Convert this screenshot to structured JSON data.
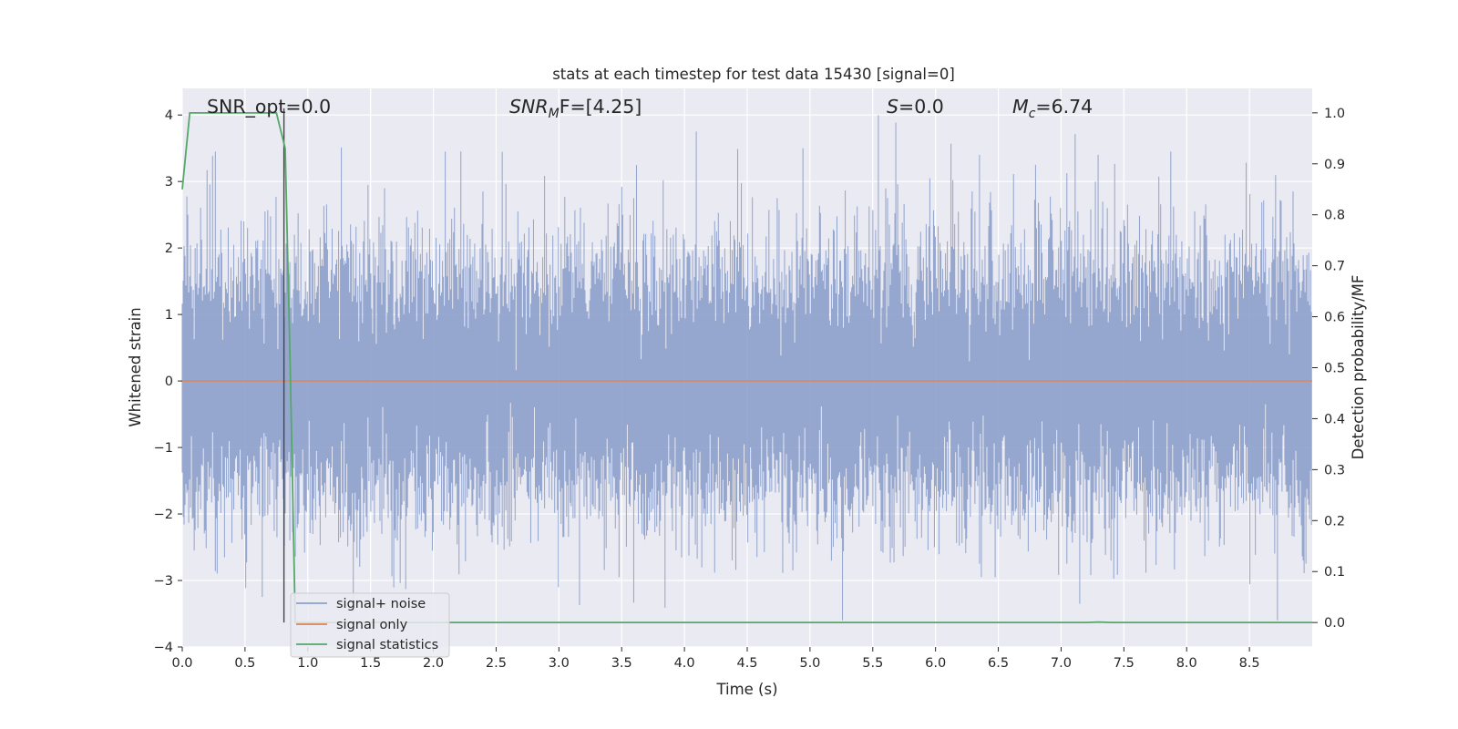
{
  "chart_data": {
    "type": "line",
    "title": "stats at each timestep for test data 15430 [signal=0]",
    "xlabel": "Time (s)",
    "ylabel": "Whitened strain",
    "y2label": "Detection probability/MF",
    "xlim": [
      0.0,
      9.0
    ],
    "ylim": [
      -4.0,
      4.4
    ],
    "y2lim": [
      -0.048,
      1.048
    ],
    "x_ticks": [
      0.0,
      0.5,
      1.0,
      1.5,
      2.0,
      2.5,
      3.0,
      3.5,
      4.0,
      4.5,
      5.0,
      5.5,
      6.0,
      6.5,
      7.0,
      7.5,
      8.0,
      8.5
    ],
    "x_tick_labels": [
      "0.0",
      "0.5",
      "1.0",
      "1.5",
      "2.0",
      "2.5",
      "3.0",
      "3.5",
      "4.0",
      "4.5",
      "5.0",
      "5.5",
      "6.0",
      "6.5",
      "7.0",
      "7.5",
      "8.0",
      "8.5"
    ],
    "y_ticks": [
      -4,
      -3,
      -2,
      -1,
      0,
      1,
      2,
      3,
      4
    ],
    "y_tick_labels": [
      "−4",
      "−3",
      "−2",
      "−1",
      "0",
      "1",
      "2",
      "3",
      "4"
    ],
    "y2_ticks": [
      0.0,
      0.1,
      0.2,
      0.3,
      0.4,
      0.5,
      0.6,
      0.7,
      0.8,
      0.9,
      1.0
    ],
    "y2_tick_labels": [
      "0.0",
      "0.1",
      "0.2",
      "0.3",
      "0.4",
      "0.5",
      "0.6",
      "0.7",
      "0.8",
      "0.9",
      "1.0"
    ],
    "grid": true,
    "legend_position": "lower-left",
    "annotations": [
      {
        "text": "SNR_opt=0.0"
      },
      {
        "sym": "SNR",
        "sub": "M",
        "rest": "F=[4.25]"
      },
      {
        "sym": "S",
        "rest": "=0.0"
      },
      {
        "sym": "M",
        "sub": "c",
        "rest": "=6.74"
      }
    ],
    "series": [
      {
        "name": "signal+ noise",
        "color": "#8da0cb",
        "axis": "left",
        "kind": "noise",
        "sample_rate_hz": 2048,
        "std": 0.95,
        "peaks": [
          {
            "x": 0.05,
            "y": 2.5
          },
          {
            "x": 0.27,
            "y": 3.45
          },
          {
            "x": 0.52,
            "y": 2.3
          },
          {
            "x": 0.66,
            "y": 2.55
          },
          {
            "x": 1.48,
            "y": 2.95
          },
          {
            "x": 2.1,
            "y": 3.45
          },
          {
            "x": 2.4,
            "y": 2.85
          },
          {
            "x": 3.6,
            "y": 2.75
          },
          {
            "x": 4.1,
            "y": 3.75
          },
          {
            "x": 4.95,
            "y": 3.5
          },
          {
            "x": 5.55,
            "y": 4.0
          },
          {
            "x": 6.35,
            "y": 3.4
          },
          {
            "x": 6.8,
            "y": 3.25
          },
          {
            "x": 7.3,
            "y": 3.4
          },
          {
            "x": 7.88,
            "y": 3.45
          },
          {
            "x": 8.85,
            "y": 2.85
          },
          {
            "x": 0.1,
            "y": -2.55
          },
          {
            "x": 0.34,
            "y": -2.65
          },
          {
            "x": 3.0,
            "y": -3.1
          },
          {
            "x": 3.48,
            "y": -2.95
          },
          {
            "x": 5.26,
            "y": -3.6
          },
          {
            "x": 6.48,
            "y": -2.95
          },
          {
            "x": 7.15,
            "y": -3.35
          },
          {
            "x": 7.4,
            "y": -2.7
          },
          {
            "x": 8.73,
            "y": -3.6
          },
          {
            "x": 8.93,
            "y": -2.7
          }
        ]
      },
      {
        "name": "signal only",
        "color": "#dd8452",
        "axis": "left",
        "x": [
          0.0,
          9.0
        ],
        "y": [
          0.0,
          0.0
        ]
      },
      {
        "name": "signal statistics",
        "color": "#55a868",
        "axis": "right",
        "x": [
          0.0,
          0.06,
          0.12,
          0.25,
          0.5,
          0.75,
          0.8,
          0.82,
          0.86,
          0.9,
          1.0,
          2.0,
          4.0,
          6.0,
          7.2,
          7.3,
          7.4,
          9.0
        ],
        "y": [
          0.85,
          1.0,
          1.0,
          1.0,
          1.0,
          1.0,
          0.95,
          0.93,
          0.5,
          0.0,
          0.0,
          0.0,
          0.0,
          0.0,
          0.0,
          0.001,
          0.0,
          0.0
        ]
      }
    ],
    "vline_x": 0.81
  }
}
